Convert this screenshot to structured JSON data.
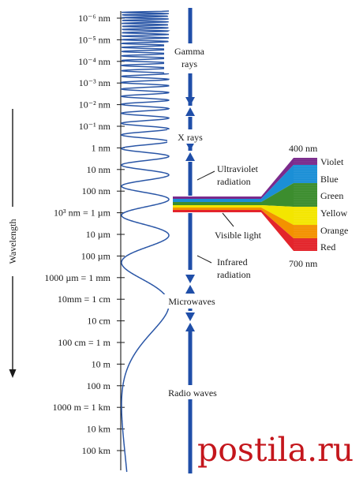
{
  "diagram": {
    "axis_label": "Wavelength",
    "scale_labels": [
      "10⁻⁶ nm",
      "10⁻⁵ nm",
      "10⁻⁴ nm",
      "10⁻³ nm",
      "10⁻² nm",
      "10⁻¹ nm",
      "1 nm",
      "10 nm",
      "100 nm",
      "10³ nm = 1 µm",
      "10 µm",
      "100 µm",
      "1000 µm = 1 mm",
      "10mm = 1 cm",
      "10 cm",
      "100 cm = 1 m",
      "10 m",
      "100 m",
      "1000 m = 1 km",
      "10 km",
      "100 km"
    ],
    "bands": {
      "gamma": [
        "Gamma",
        "rays"
      ],
      "xray": "X rays",
      "ultraviolet": [
        "Ultraviolet",
        "radiation"
      ],
      "visible": "Visible light",
      "infrared": [
        "Infrared",
        "radiation"
      ],
      "microwaves": "Microwaves",
      "radio": "Radio waves"
    },
    "spectrum": {
      "short_end": "400 nm",
      "long_end": "700 nm",
      "colors": [
        "Violet",
        "Blue",
        "Green",
        "Yellow",
        "Orange",
        "Red"
      ]
    },
    "colors": {
      "arrow_blue": "#1f4ea8",
      "wave_blue": "#2a56a6",
      "violet": "#7b2a8c",
      "blue": "#1b8fd6",
      "green": "#3c8d2e",
      "yellow": "#f3e600",
      "orange": "#f39200",
      "red": "#e3242b",
      "watermark": "#c4161c"
    }
  },
  "watermark": {
    "text": "postila.ru"
  }
}
